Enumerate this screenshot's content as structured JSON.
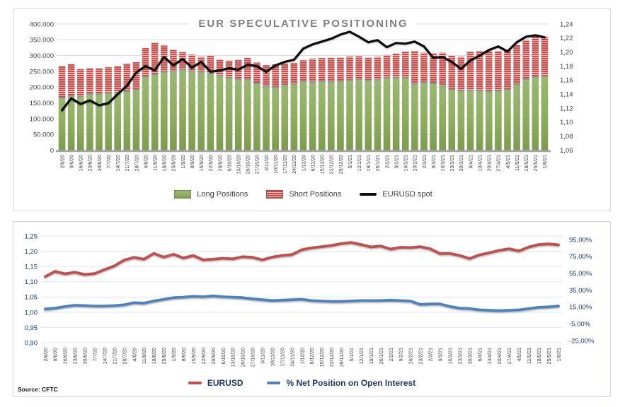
{
  "source_note": "Source: CFTC",
  "colors": {
    "long_fill_top": "#9ab873",
    "long_fill_mid": "#8fae60",
    "long_fill_bottom": "#7d9c50",
    "long_cap": "#85979e",
    "short_base": "#c94d4b",
    "short_stripe": "#f0bdbc",
    "spot_line": "#0d0d0d",
    "eurusd_line": "#bf504d",
    "netoi_line": "#4f81bd",
    "grid_top": "#d9d9d9",
    "grid_bottom": "#dde7f3",
    "zero_axis": "#a6a6a6",
    "axis_gray": "#404040",
    "axis_navy": "#17375e",
    "title_gray": "#7f7f7f"
  },
  "chart_data": [
    {
      "type": "bar",
      "subtype": "stacked-bar-with-line",
      "title": "EUR SPECULATIVE POSITIONING",
      "legend": [
        "Long Positions",
        "Short Positions",
        "EURUSD spot"
      ],
      "legend_position": "bottom",
      "grid": true,
      "left_axis": {
        "min": 0,
        "max": 400000,
        "ticks": [
          "400.000",
          "350.000",
          "300.000",
          "250.000",
          "200.000",
          "150.000",
          "100.000",
          "50.000",
          "0"
        ]
      },
      "right_axis": {
        "min": 1.06,
        "max": 1.24,
        "ticks": [
          "1,24",
          "1,22",
          "1,20",
          "1,18",
          "1,16",
          "1,14",
          "1,12",
          "1,10",
          "1,08",
          "1,06"
        ]
      },
      "categories": [
        "2/6/20",
        "9/6/20",
        "16/6/20",
        "23/6/20",
        "30/6/20",
        "7/7/20",
        "14/7/20",
        "21/7/20",
        "28/7/20",
        "4/8/20",
        "11/8/20",
        "18/8/20",
        "25/8/20",
        "1/9/20",
        "8/9/20",
        "15/9/20",
        "22/9/20",
        "29/9/20",
        "6/10/20",
        "13/10/20",
        "20/10/20",
        "27/10/20",
        "3/11/20",
        "10/11/20",
        "17/11/20",
        "24/11/20",
        "1/12/20",
        "8/12/20",
        "15/12/20",
        "22/12/20",
        "29/12/20",
        "5/1/21",
        "12/1/21",
        "19/1/21",
        "26/1/21",
        "2/2/21",
        "9/2/21",
        "16/2/21",
        "23/2/21",
        "2/3/21",
        "9/3/21",
        "16/3/21",
        "23/3/21",
        "30/3/21",
        "6/4/21",
        "13/4/21",
        "20/4/21",
        "27/4/21",
        "4/5/21",
        "11/5/21",
        "18/5/21",
        "25/5/21",
        "1/6/21"
      ],
      "series": [
        {
          "name": "Long Positions",
          "axis": "left",
          "values": [
            168000,
            174000,
            172000,
            181000,
            180000,
            183000,
            185000,
            189000,
            194000,
            235000,
            242000,
            250000,
            253000,
            257000,
            253000,
            250000,
            246000,
            238000,
            231000,
            227000,
            227000,
            214000,
            204000,
            201000,
            206000,
            211000,
            220000,
            218000,
            220000,
            219000,
            220000,
            224000,
            227000,
            223000,
            225000,
            231000,
            232000,
            231000,
            211000,
            216000,
            214000,
            205000,
            194000,
            190000,
            191000,
            190000,
            188000,
            190000,
            194000,
            210000,
            227000,
            234000,
            236000
          ]
        },
        {
          "name": "Short Positions",
          "axis": "left",
          "values": [
            99000,
            99000,
            85000,
            79000,
            79000,
            80000,
            81000,
            86000,
            85000,
            89000,
            99000,
            82000,
            65000,
            54000,
            50000,
            46000,
            54000,
            50000,
            53000,
            60000,
            66000,
            64000,
            66000,
            71000,
            69000,
            66000,
            65000,
            72000,
            72000,
            74000,
            74000,
            73000,
            71000,
            71000,
            71000,
            71000,
            74000,
            81000,
            104000,
            93000,
            93000,
            104000,
            105000,
            106000,
            121000,
            125000,
            126000,
            124000,
            123000,
            124000,
            122000,
            127000,
            123000
          ]
        },
        {
          "name": "EURUSD spot",
          "axis": "right",
          "values": [
            1.117,
            1.134,
            1.126,
            1.131,
            1.124,
            1.127,
            1.14,
            1.152,
            1.171,
            1.18,
            1.174,
            1.193,
            1.181,
            1.19,
            1.178,
            1.186,
            1.172,
            1.174,
            1.177,
            1.175,
            1.182,
            1.18,
            1.172,
            1.181,
            1.186,
            1.189,
            1.205,
            1.211,
            1.215,
            1.219,
            1.225,
            1.229,
            1.222,
            1.214,
            1.217,
            1.207,
            1.213,
            1.212,
            1.215,
            1.208,
            1.192,
            1.193,
            1.186,
            1.176,
            1.188,
            1.195,
            1.203,
            1.208,
            1.201,
            1.214,
            1.222,
            1.224,
            1.221
          ]
        }
      ]
    },
    {
      "type": "line",
      "title": "",
      "legend": [
        "EURUSD",
        "% Net Position on Open Interest"
      ],
      "legend_position": "bottom",
      "grid": true,
      "left_axis": {
        "min": 0.9,
        "max": 1.25,
        "ticks": [
          "1,25",
          "1,20",
          "1,15",
          "1,10",
          "1,05",
          "1,00",
          "0,95",
          "0,90"
        ]
      },
      "right_axis": {
        "min": -25,
        "max": 95,
        "ticks": [
          "95,00%",
          "75,00%",
          "55,00%",
          "35,00%",
          "15,00%",
          "-5,00%",
          "-25,00%"
        ]
      },
      "categories": [
        "2/6/20",
        "9/6/20",
        "16/6/20",
        "23/6/20",
        "30/6/20",
        "7/7/20",
        "14/7/20",
        "21/7/20",
        "28/7/20",
        "4/8/20",
        "11/8/20",
        "18/8/20",
        "25/8/20",
        "1/9/20",
        "8/9/20",
        "15/9/20",
        "22/9/20",
        "29/9/20",
        "6/10/20",
        "13/10/20",
        "20/10/20",
        "27/10/20",
        "3/11/20",
        "10/11/20",
        "17/11/20",
        "24/11/20",
        "1/12/20",
        "8/12/20",
        "15/12/20",
        "22/12/20",
        "29/12/20",
        "5/1/21",
        "12/1/21",
        "19/1/21",
        "26/1/21",
        "2/2/21",
        "9/2/21",
        "16/2/21",
        "23/2/21",
        "2/3/21",
        "9/3/21",
        "16/3/21",
        "23/3/21",
        "30/3/21",
        "6/4/21",
        "13/4/21",
        "20/4/21",
        "27/4/21",
        "4/5/21",
        "11/5/21",
        "18/5/21",
        "25/5/21",
        "1/6/21"
      ],
      "series": [
        {
          "name": "EURUSD",
          "axis": "left",
          "values": [
            1.117,
            1.134,
            1.126,
            1.131,
            1.124,
            1.127,
            1.14,
            1.152,
            1.171,
            1.18,
            1.174,
            1.193,
            1.181,
            1.19,
            1.178,
            1.186,
            1.172,
            1.174,
            1.177,
            1.175,
            1.182,
            1.18,
            1.172,
            1.181,
            1.186,
            1.189,
            1.205,
            1.211,
            1.215,
            1.219,
            1.225,
            1.229,
            1.222,
            1.214,
            1.217,
            1.207,
            1.213,
            1.212,
            1.215,
            1.208,
            1.192,
            1.193,
            1.186,
            1.176,
            1.188,
            1.195,
            1.203,
            1.208,
            1.201,
            1.214,
            1.222,
            1.224,
            1.221
          ]
        },
        {
          "name": "% Net Position on Open Interest",
          "axis": "right",
          "values": [
            12.5,
            13.5,
            15.5,
            17,
            16.5,
            16,
            16,
            16.5,
            17.5,
            20,
            19.5,
            22,
            24,
            26,
            26.5,
            27.5,
            27,
            28,
            27,
            26.5,
            26,
            24.5,
            23.5,
            22.5,
            23,
            23.5,
            24,
            22.5,
            22,
            21.5,
            21.5,
            22,
            22.5,
            22.5,
            22.5,
            23,
            22.5,
            22,
            18,
            18.5,
            18.5,
            15.5,
            13.5,
            13,
            11.5,
            11,
            10.5,
            11,
            11.5,
            13,
            14.5,
            15,
            16
          ]
        }
      ]
    }
  ]
}
